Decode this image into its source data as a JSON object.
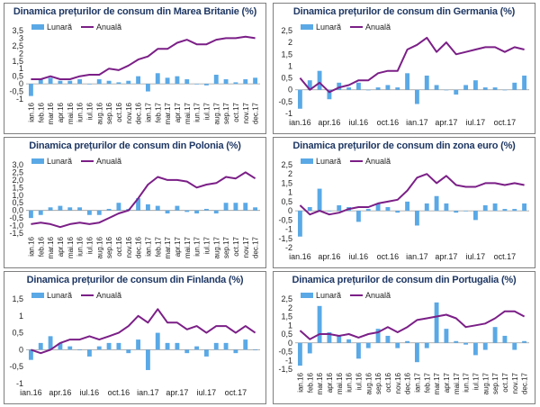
{
  "colors": {
    "monthly": "#5aa9e6",
    "annual": "#7b1f87",
    "title": "#1f3864",
    "axis": "#999999"
  },
  "legend": {
    "monthly": "Lunară",
    "annual": "Anuală"
  },
  "chart_data": [
    {
      "type": "bar+line",
      "title": "Dinamica prețurilor de consum din Marea Britanie (%)",
      "ylim": [
        -1,
        3.5
      ],
      "yticks": [
        "-1",
        "-0,5",
        "0",
        "0,5",
        "1",
        "1,5",
        "2",
        "2,5",
        "3",
        "3,5"
      ],
      "tick_values": [
        -1,
        -0.5,
        0,
        0.5,
        1,
        1.5,
        2,
        2.5,
        3,
        3.5
      ],
      "categories": [
        "ian.16",
        "feb.16",
        "mar.16",
        "apr.16",
        "mai.16",
        "iun.16",
        "iul.16",
        "aug.16",
        "sep.16",
        "oct.16",
        "nov.16",
        "dec.16",
        "ian.17",
        "feb.17",
        "mar.17",
        "apr.17",
        "mai.17",
        "iun.17",
        "iul.17",
        "aug.17",
        "sep.17",
        "oct.17",
        "nov.17",
        "dec.17"
      ],
      "xlabels_rotated": true,
      "series": [
        {
          "name": "Lunară",
          "kind": "bar",
          "values": [
            -0.8,
            0.3,
            0.4,
            0.2,
            0.2,
            0.3,
            0.0,
            0.3,
            0.2,
            0.1,
            0.2,
            0.5,
            -0.5,
            0.7,
            0.4,
            0.5,
            0.3,
            0.0,
            -0.1,
            0.6,
            0.3,
            0.1,
            0.3,
            0.4
          ]
        },
        {
          "name": "Anuală",
          "kind": "line",
          "values": [
            0.3,
            0.3,
            0.5,
            0.3,
            0.3,
            0.5,
            0.6,
            0.6,
            1.0,
            0.9,
            1.2,
            1.6,
            1.8,
            2.3,
            2.3,
            2.7,
            2.9,
            2.6,
            2.6,
            2.9,
            3.0,
            3.0,
            3.1,
            3.0
          ]
        }
      ]
    },
    {
      "type": "bar+line",
      "title": "Dinamica prețurilor de consum din Germania (%)",
      "ylim": [
        -1,
        2.5
      ],
      "yticks": [
        "-1",
        "-0,5",
        "0",
        "0,5",
        "1",
        "1,5",
        "2",
        "2,5"
      ],
      "tick_values": [
        -1,
        -0.5,
        0,
        0.5,
        1,
        1.5,
        2,
        2.5
      ],
      "categories": [
        "ian.16",
        "feb.16",
        "mar.16",
        "apr.16",
        "mai.16",
        "iun.16",
        "iul.16",
        "aug.16",
        "sep.16",
        "oct.16",
        "nov.16",
        "dec.16",
        "ian.17",
        "feb.17",
        "mar.17",
        "apr.17",
        "mai.17",
        "iun.17",
        "iul.17",
        "aug.17",
        "sep.17",
        "oct.17",
        "nov.17",
        "dec.17"
      ],
      "xlabels": [
        "ian.16",
        "",
        "",
        "apr.16",
        "",
        "",
        "iul.16",
        "",
        "",
        "oct.16",
        "",
        "",
        "ian.17",
        "",
        "",
        "apr.17",
        "",
        "",
        "iul.17",
        "",
        "",
        "oct.17",
        "",
        ""
      ],
      "xlabels_rotated": false,
      "series": [
        {
          "name": "Lunară",
          "kind": "bar",
          "values": [
            -0.8,
            0.4,
            0.8,
            -0.4,
            0.3,
            0.1,
            0.3,
            0.0,
            0.1,
            0.2,
            0.1,
            0.7,
            -0.6,
            0.6,
            0.2,
            0.0,
            -0.2,
            0.2,
            0.4,
            0.1,
            0.1,
            0.0,
            0.3,
            0.6
          ]
        },
        {
          "name": "Anuală",
          "kind": "line",
          "values": [
            0.5,
            0.0,
            0.3,
            -0.1,
            0.1,
            0.2,
            0.4,
            0.4,
            0.7,
            0.8,
            0.8,
            1.7,
            1.9,
            2.2,
            1.6,
            2.0,
            1.5,
            1.6,
            1.7,
            1.8,
            1.8,
            1.6,
            1.8,
            1.7
          ]
        }
      ]
    },
    {
      "type": "bar+line",
      "title": "Dinamica prețurilor de consum din Polonia (%)",
      "ylim": [
        -1.5,
        3
      ],
      "yticks": [
        "-1,5",
        "-1,0",
        "-0,5",
        "0,0",
        "0,5",
        "1,0",
        "1,5",
        "2,0",
        "2,5",
        "3,0"
      ],
      "tick_values": [
        -1.5,
        -1,
        -0.5,
        0,
        0.5,
        1,
        1.5,
        2,
        2.5,
        3
      ],
      "categories": [
        "ian.16",
        "feb.16",
        "mar.16",
        "apr.16",
        "mai.16",
        "iun.16",
        "iul.16",
        "aug.16",
        "sep.16",
        "oct.16",
        "nov.16",
        "dec.16",
        "ian.17",
        "feb.17",
        "mar.17",
        "apr.17",
        "mai.17",
        "iun.17",
        "iul.17",
        "aug.17",
        "sep.17",
        "oct.17",
        "nov.17",
        "dec.17"
      ],
      "xlabels_rotated": true,
      "series": [
        {
          "name": "Lunară",
          "kind": "bar",
          "values": [
            -0.5,
            -0.3,
            0.2,
            0.3,
            0.2,
            0.2,
            -0.3,
            -0.3,
            0.1,
            0.5,
            0.1,
            0.8,
            0.4,
            0.3,
            -0.2,
            0.3,
            -0.1,
            -0.2,
            0.1,
            -0.2,
            0.5,
            0.5,
            0.5,
            0.2
          ]
        },
        {
          "name": "Anuală",
          "kind": "line",
          "values": [
            -0.9,
            -0.8,
            -0.9,
            -1.1,
            -0.9,
            -0.8,
            -0.9,
            -0.8,
            -0.5,
            -0.2,
            0.0,
            0.8,
            1.7,
            2.2,
            2.0,
            2.0,
            1.9,
            1.5,
            1.7,
            1.8,
            2.2,
            2.1,
            2.5,
            2.1
          ]
        }
      ]
    },
    {
      "type": "bar+line",
      "title": "Dinamica prețurilor de consum din zona euro (%)",
      "ylim": [
        -2,
        2.5
      ],
      "yticks": [
        "-2",
        "-1,5",
        "-1",
        "-0,5",
        "0",
        "0,5",
        "1",
        "1,5",
        "2",
        "2,5"
      ],
      "tick_values": [
        -2,
        -1.5,
        -1,
        -0.5,
        0,
        0.5,
        1,
        1.5,
        2,
        2.5
      ],
      "categories": [
        "ian.16",
        "feb.16",
        "mar.16",
        "apr.16",
        "mai.16",
        "iun.16",
        "iul.16",
        "aug.16",
        "sep.16",
        "oct.16",
        "nov.16",
        "dec.16",
        "ian.17",
        "feb.17",
        "mar.17",
        "apr.17",
        "mai.17",
        "iun.17",
        "iul.17",
        "aug.17",
        "sep.17",
        "oct.17",
        "nov.17",
        "dec.17"
      ],
      "xlabels": [
        "ian.16",
        "",
        "",
        "apr.16",
        "",
        "",
        "iul.16",
        "",
        "",
        "oct.16",
        "",
        "",
        "ian.17",
        "",
        "",
        "apr.17",
        "",
        "",
        "iul.17",
        "",
        "",
        "oct.17",
        "",
        ""
      ],
      "xlabels_rotated": false,
      "series": [
        {
          "name": "Lunară",
          "kind": "bar",
          "values": [
            -1.4,
            0.2,
            1.2,
            0.0,
            0.3,
            0.2,
            -0.6,
            0.1,
            0.4,
            0.2,
            -0.1,
            0.5,
            -0.8,
            0.4,
            0.8,
            0.4,
            -0.1,
            0.0,
            -0.5,
            0.3,
            0.4,
            0.1,
            0.1,
            0.4
          ]
        },
        {
          "name": "Anuală",
          "kind": "line",
          "values": [
            0.3,
            -0.2,
            0.0,
            -0.2,
            -0.1,
            0.1,
            0.2,
            0.2,
            0.4,
            0.5,
            0.6,
            1.1,
            1.8,
            2.0,
            1.5,
            1.9,
            1.4,
            1.3,
            1.3,
            1.5,
            1.5,
            1.4,
            1.5,
            1.4
          ]
        }
      ]
    },
    {
      "type": "bar+line",
      "title": "Dinamica prețurilor de consum din Finlanda (%)",
      "ylim": [
        -1,
        1.5
      ],
      "yticks": [
        "-1",
        "-0,5",
        "0",
        "0,5",
        "1",
        "1,5"
      ],
      "tick_values": [
        -1,
        -0.5,
        0,
        0.5,
        1,
        1.5
      ],
      "categories": [
        "ian.16",
        "feb.16",
        "mar.16",
        "apr.16",
        "mai.16",
        "iun.16",
        "iul.16",
        "aug.16",
        "sep.16",
        "oct.16",
        "nov.16",
        "dec.16",
        "ian.17",
        "feb.17",
        "mar.17",
        "apr.17",
        "mai.17",
        "iun.17",
        "iul.17",
        "aug.17",
        "sep.17",
        "oct.17",
        "nov.17",
        "dec.17"
      ],
      "xlabels": [
        "ian.16",
        "",
        "",
        "apr.16",
        "",
        "",
        "iul.16",
        "",
        "",
        "oct.16",
        "",
        "",
        "ian.17",
        "",
        "",
        "apr.17",
        "",
        "",
        "iul.17",
        "",
        "",
        "oct.17",
        "",
        ""
      ],
      "xlabels_rotated": false,
      "series": [
        {
          "name": "Lunară",
          "kind": "bar",
          "values": [
            -0.3,
            0.2,
            0.4,
            0.2,
            0.1,
            0.0,
            -0.2,
            0.1,
            0.2,
            0.2,
            -0.1,
            0.3,
            -0.6,
            0.5,
            0.2,
            0.2,
            -0.1,
            0.1,
            -0.2,
            0.2,
            0.2,
            -0.1,
            0.3,
            0.0
          ]
        },
        {
          "name": "Anuală",
          "kind": "line",
          "values": [
            0.0,
            -0.1,
            0.0,
            0.2,
            0.3,
            0.3,
            0.4,
            0.3,
            0.4,
            0.5,
            0.7,
            1.0,
            0.8,
            1.2,
            0.8,
            0.8,
            0.6,
            0.7,
            0.5,
            0.7,
            0.7,
            0.5,
            0.7,
            0.5
          ]
        }
      ]
    },
    {
      "type": "bar+line",
      "title": "Dinamica prețurilor de consum din Portugalia (%)",
      "ylim": [
        -1.5,
        2.5
      ],
      "yticks": [
        "-1,5",
        "-1",
        "-0,5",
        "0",
        "0,5",
        "1",
        "1,5",
        "2",
        "2,5"
      ],
      "tick_values": [
        -1.5,
        -1,
        -0.5,
        0,
        0.5,
        1,
        1.5,
        2,
        2.5
      ],
      "categories": [
        "ian.16",
        "feb.16",
        "mar.16",
        "apr.16",
        "mai.16",
        "iun.16",
        "iul.16",
        "aug.16",
        "sep.16",
        "oct.16",
        "nov.16",
        "dec.16",
        "ian.17",
        "feb.17",
        "mar.17",
        "apr.17",
        "mai.17",
        "iun.17",
        "iul.17",
        "aug.17",
        "sep.17",
        "oct.17",
        "nov.17",
        "dec.17"
      ],
      "xlabels_rotated": true,
      "series": [
        {
          "name": "Lunară",
          "kind": "bar",
          "values": [
            -1.3,
            -0.6,
            2.1,
            0.6,
            0.4,
            0.2,
            -0.9,
            -0.3,
            0.8,
            0.4,
            -0.3,
            0.1,
            -1.1,
            -0.3,
            2.3,
            0.8,
            0.1,
            -0.1,
            -0.7,
            -0.4,
            0.9,
            0.4,
            -0.4,
            0.1
          ]
        },
        {
          "name": "Anuală",
          "kind": "line",
          "values": [
            0.7,
            0.2,
            0.5,
            0.5,
            0.4,
            0.5,
            0.3,
            0.5,
            0.6,
            0.9,
            0.6,
            0.9,
            1.3,
            1.4,
            1.5,
            1.6,
            1.4,
            0.9,
            1.0,
            1.1,
            1.4,
            1.8,
            1.8,
            1.5
          ]
        }
      ]
    }
  ]
}
